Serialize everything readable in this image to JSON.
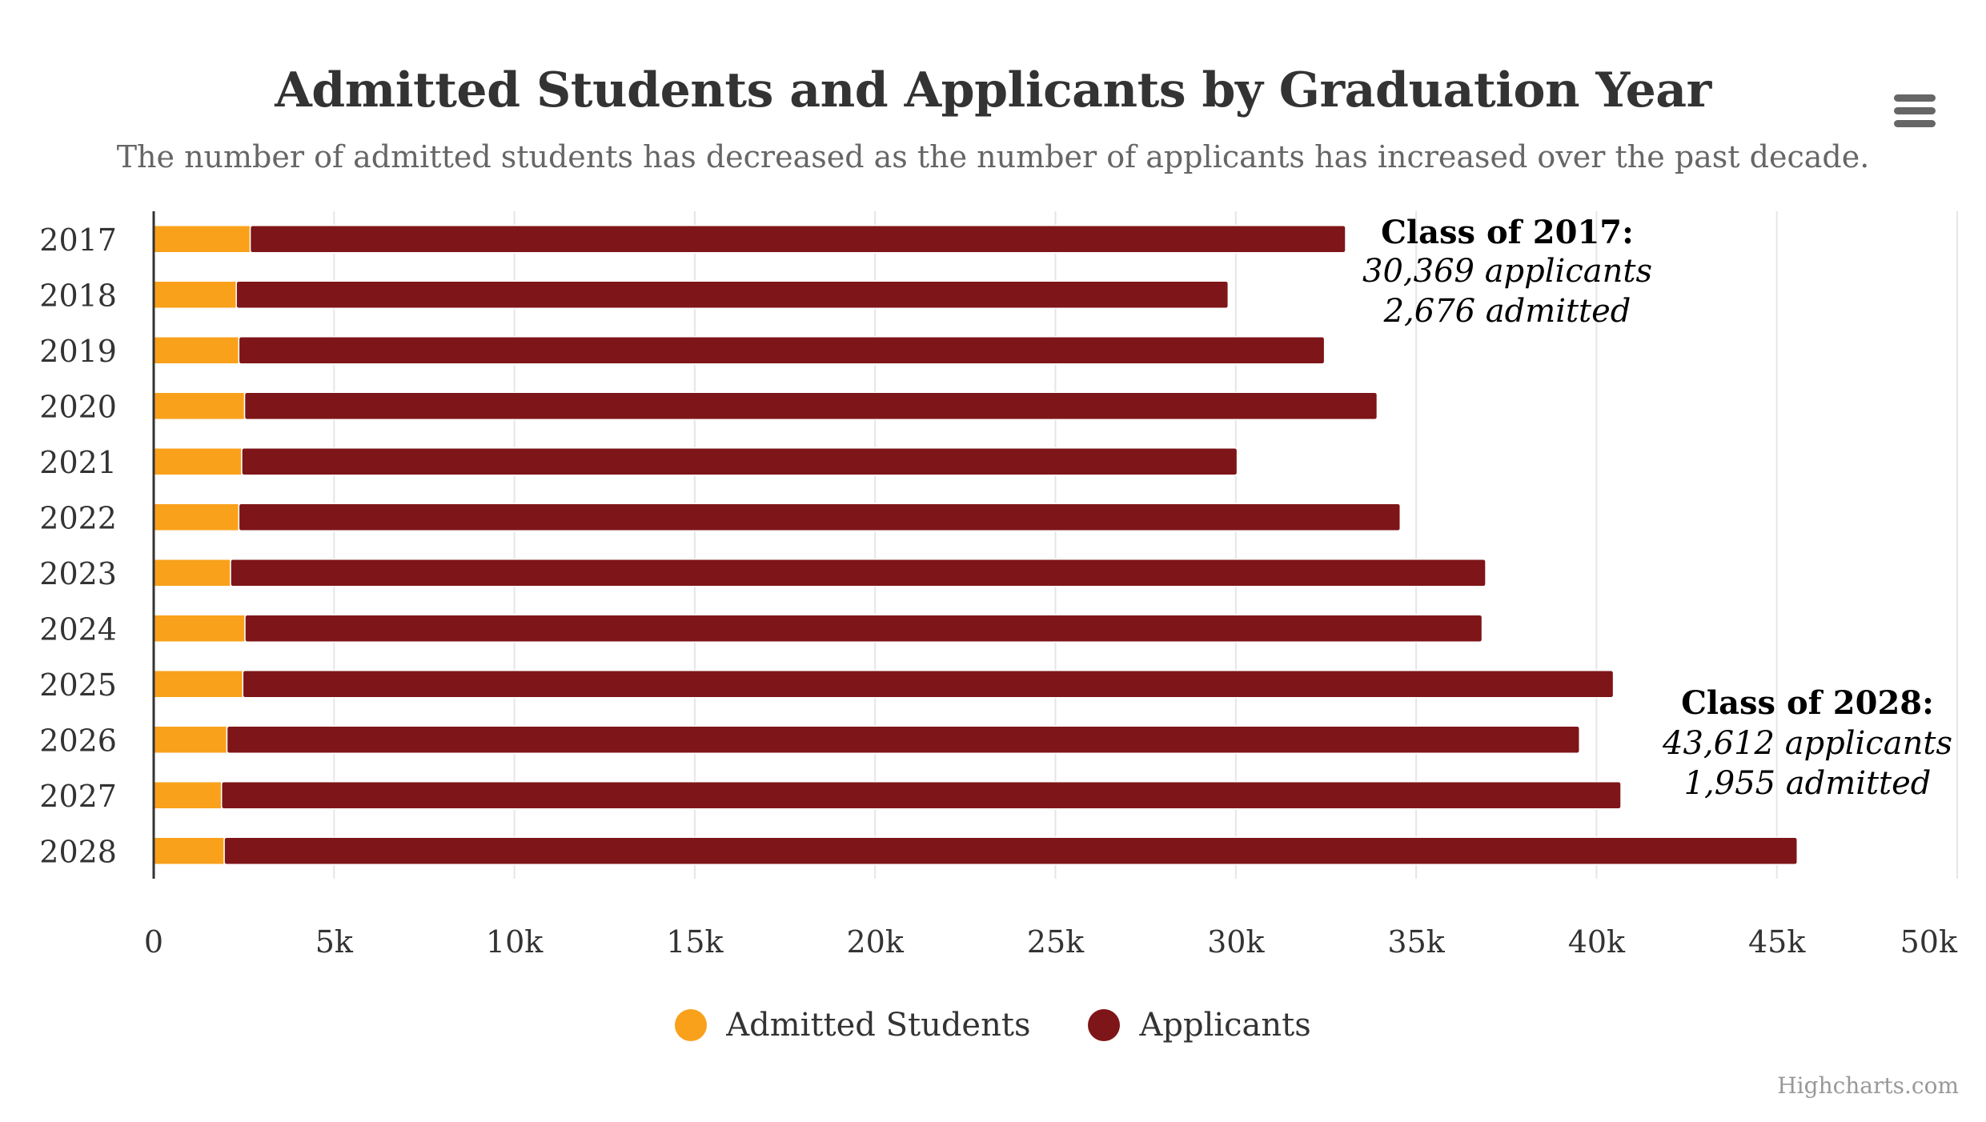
{
  "title": "Admitted Students and Applicants by Graduation Year",
  "subtitle": "The number of admitted students has decreased as the number of applicants has increased over the past decade.",
  "credit": "Highcharts.com",
  "menu_icon": "hamburger-menu-icon",
  "colors": {
    "admitted": "#F9A11B",
    "applicants": "#7E1518",
    "grid": "#E6E6E6",
    "axis": "#333333"
  },
  "chart_data": {
    "type": "bar",
    "orientation": "horizontal",
    "stacked": true,
    "categories": [
      "2017",
      "2018",
      "2019",
      "2020",
      "2021",
      "2022",
      "2023",
      "2024",
      "2025",
      "2026",
      "2027",
      "2028"
    ],
    "series": [
      {
        "name": "Admitted Students",
        "values": [
          2676,
          2290,
          2360,
          2520,
          2440,
          2360,
          2130,
          2530,
          2470,
          2030,
          1880,
          1955
        ]
      },
      {
        "name": "Applicants",
        "values": [
          30369,
          27500,
          30100,
          31400,
          27600,
          32200,
          34800,
          34300,
          38000,
          37500,
          38800,
          43612
        ]
      }
    ],
    "x_ticks": [
      "0",
      "5k",
      "10k",
      "15k",
      "20k",
      "25k",
      "30k",
      "35k",
      "40k",
      "45k",
      "50k"
    ],
    "xlim": [
      0,
      50000
    ],
    "grid": true,
    "legend": "bottom-center",
    "annotations": [
      {
        "heading": "Class of 2017:",
        "line1": "30,369 applicants",
        "line2": "2,676 admitted",
        "category": "2017"
      },
      {
        "heading": "Class of 2028:",
        "line1": "43,612 applicants",
        "line2": "1,955 admitted",
        "category": "2028"
      }
    ]
  }
}
